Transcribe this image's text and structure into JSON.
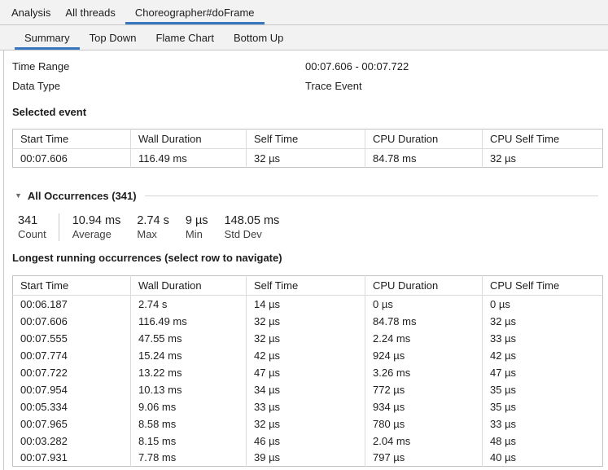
{
  "colors": {
    "accent": "#3876bf"
  },
  "top_bar": {
    "title": "Analysis",
    "tabs": [
      {
        "label": "All threads",
        "selected": false
      },
      {
        "label": "Choreographer#doFrame",
        "selected": true
      }
    ]
  },
  "sub_tabs": [
    {
      "label": "Summary",
      "selected": true
    },
    {
      "label": "Top Down",
      "selected": false
    },
    {
      "label": "Flame Chart",
      "selected": false
    },
    {
      "label": "Bottom Up",
      "selected": false
    }
  ],
  "info": {
    "time_range_label": "Time Range",
    "time_range_value": "00:07.606 - 00:07.722",
    "data_type_label": "Data Type",
    "data_type_value": "Trace Event"
  },
  "selected_event": {
    "heading": "Selected event",
    "columns": [
      "Start Time",
      "Wall Duration",
      "Self Time",
      "CPU Duration",
      "CPU Self Time"
    ],
    "rows": [
      [
        "00:07.606",
        "116.49 ms",
        "32 µs",
        "84.78 ms",
        "32 µs"
      ]
    ]
  },
  "all_occurrences": {
    "heading": "All Occurrences (341)",
    "stats": [
      {
        "value": "341",
        "label": "Count"
      },
      {
        "value": "10.94 ms",
        "label": "Average"
      },
      {
        "value": "2.74 s",
        "label": "Max"
      },
      {
        "value": "9 µs",
        "label": "Min"
      },
      {
        "value": "148.05 ms",
        "label": "Std Dev"
      }
    ]
  },
  "longest_running": {
    "heading": "Longest running occurrences (select row to navigate)",
    "columns": [
      "Start Time",
      "Wall Duration",
      "Self Time",
      "CPU Duration",
      "CPU Self Time"
    ],
    "rows": [
      [
        "00:06.187",
        "2.74 s",
        "14 µs",
        "0 µs",
        "0 µs"
      ],
      [
        "00:07.606",
        "116.49 ms",
        "32 µs",
        "84.78 ms",
        "32 µs"
      ],
      [
        "00:07.555",
        "47.55 ms",
        "32 µs",
        "2.24 ms",
        "33 µs"
      ],
      [
        "00:07.774",
        "15.24 ms",
        "42 µs",
        "924 µs",
        "42 µs"
      ],
      [
        "00:07.722",
        "13.22 ms",
        "47 µs",
        "3.26 ms",
        "47 µs"
      ],
      [
        "00:07.954",
        "10.13 ms",
        "34 µs",
        "772 µs",
        "35 µs"
      ],
      [
        "00:05.334",
        "9.06 ms",
        "33 µs",
        "934 µs",
        "35 µs"
      ],
      [
        "00:07.965",
        "8.58 ms",
        "32 µs",
        "780 µs",
        "33 µs"
      ],
      [
        "00:03.282",
        "8.15 ms",
        "46 µs",
        "2.04 ms",
        "48 µs"
      ],
      [
        "00:07.931",
        "7.78 ms",
        "39 µs",
        "797 µs",
        "40 µs"
      ]
    ]
  }
}
